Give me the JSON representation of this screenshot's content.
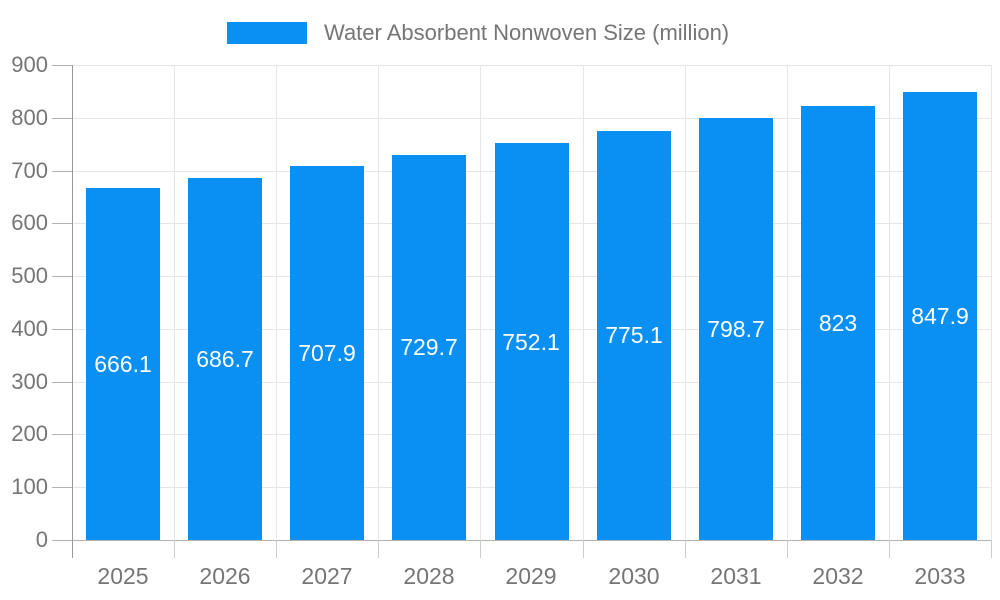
{
  "chart_data": {
    "type": "bar",
    "title": "Water Absorbent Nonwoven Size (million)",
    "categories": [
      "2025",
      "2026",
      "2027",
      "2028",
      "2029",
      "2030",
      "2031",
      "2032",
      "2033"
    ],
    "values": [
      666.1,
      686.7,
      707.9,
      729.7,
      752.1,
      775.1,
      798.7,
      823,
      847.9
    ],
    "value_labels": [
      "666.1",
      "686.7",
      "707.9",
      "729.7",
      "752.1",
      "775.1",
      "798.7",
      "823",
      "847.9"
    ],
    "xlabel": "",
    "ylabel": "",
    "ylim": [
      0,
      900
    ],
    "y_tick_step": 100,
    "y_tick_labels": [
      "0",
      "100",
      "200",
      "300",
      "400",
      "500",
      "600",
      "700",
      "800",
      "900"
    ],
    "grid": "on",
    "legend_position": "top-center",
    "colors": {
      "bar": "#0a8ff2",
      "axis_text": "#757575",
      "legend_text": "#757575",
      "bar_label_text": "#ffffff",
      "gridline": "#e6e6e6",
      "y_axis_line": "#999999",
      "x_axis_line": "#b3b3b3",
      "minor_tick": "#cccccc",
      "background": "#ffffff"
    }
  }
}
